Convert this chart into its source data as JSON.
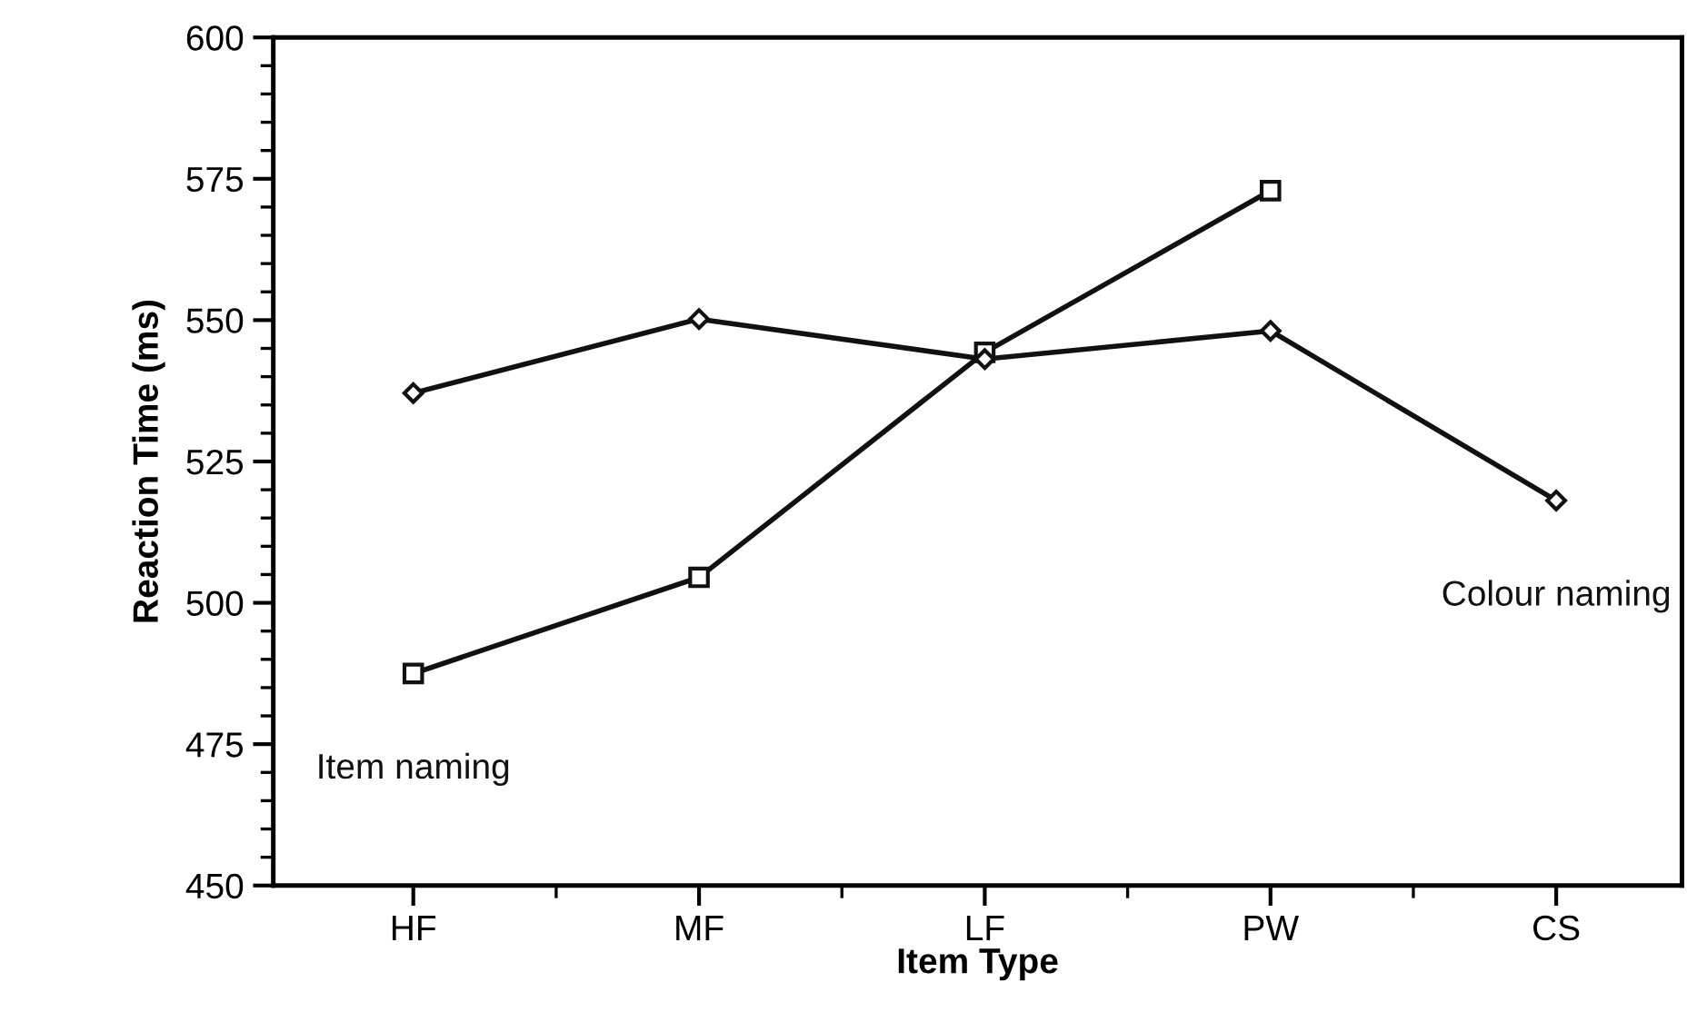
{
  "chart_data": {
    "type": "line",
    "xlabel": "Item Type",
    "ylabel": "Reaction Time (ms)",
    "categories": [
      "HF",
      "MF",
      "LF",
      "PW",
      "CS"
    ],
    "series": [
      {
        "name": "Item naming",
        "color": "#111111",
        "marker": "square",
        "values": [
          487.5,
          504.5,
          544.3,
          572.9,
          null
        ]
      },
      {
        "name": "Colour naming",
        "color": "#111111",
        "marker": "diamond",
        "values": [
          537.1,
          550.2,
          543.1,
          548.1,
          518.1
        ]
      }
    ],
    "ylim": [
      450,
      600
    ],
    "yticks": [
      450,
      475,
      500,
      525,
      550,
      575,
      600
    ],
    "grid": false,
    "legend": false,
    "line_style": "solid"
  }
}
